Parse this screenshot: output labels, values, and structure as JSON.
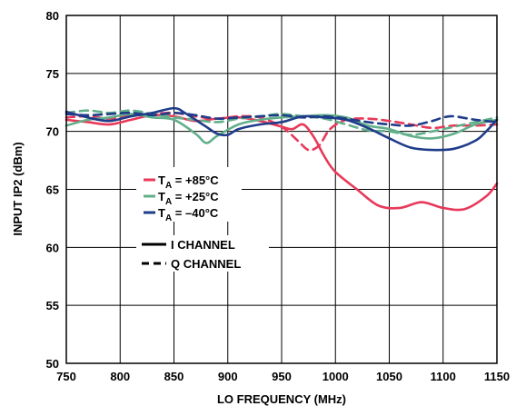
{
  "chart_data": {
    "type": "line",
    "title": "",
    "xlabel": "LO FREQUENCY (MHz)",
    "ylabel": "INPUT IP2 (dBm)",
    "xlim": [
      750,
      1150
    ],
    "ylim": [
      50,
      80
    ],
    "xticks": [
      750,
      800,
      850,
      900,
      950,
      1000,
      1050,
      1100,
      1150
    ],
    "yticks": [
      50,
      55,
      60,
      65,
      70,
      75,
      80
    ],
    "grid": true,
    "legend_placement": "center-left",
    "legend": {
      "temperatures": [
        {
          "label": "T",
          "sub": "A",
          "suffix": " = +85°C",
          "color": "#e8395a"
        },
        {
          "label": "T",
          "sub": "A",
          "suffix": " = +25°C",
          "color": "#62b08b"
        },
        {
          "label": "T",
          "sub": "A",
          "suffix": " = –40°C",
          "color": "#1f3c8a"
        }
      ],
      "channels": [
        {
          "label": "I CHANNEL",
          "style": "solid"
        },
        {
          "label": "Q CHANNEL",
          "style": "dashed"
        }
      ]
    },
    "series": [
      {
        "temp": "+85°C",
        "channel": "I",
        "color": "#e8395a",
        "dash": false,
        "x": [
          750,
          770,
          790,
          810,
          830,
          850,
          870,
          890,
          910,
          930,
          950,
          960,
          970,
          980,
          990,
          1000,
          1020,
          1040,
          1060,
          1080,
          1100,
          1120,
          1140,
          1150
        ],
        "y": [
          71.0,
          70.8,
          70.6,
          71.0,
          71.4,
          71.3,
          70.9,
          71.1,
          71.2,
          70.9,
          70.4,
          70.2,
          70.6,
          69.5,
          67.8,
          66.5,
          65.0,
          63.6,
          63.4,
          63.9,
          63.4,
          63.3,
          64.4,
          65.5
        ]
      },
      {
        "temp": "+85°C",
        "channel": "Q",
        "color": "#e8395a",
        "dash": true,
        "x": [
          750,
          770,
          790,
          810,
          830,
          850,
          870,
          890,
          910,
          930,
          950,
          965,
          975,
          985,
          995,
          1010,
          1030,
          1050,
          1070,
          1090,
          1110,
          1130,
          1150
        ],
        "y": [
          71.2,
          71.3,
          71.1,
          71.4,
          71.5,
          71.6,
          71.3,
          71.1,
          71.3,
          71.2,
          70.4,
          69.2,
          68.4,
          68.8,
          70.2,
          71.0,
          71.1,
          70.9,
          70.6,
          70.3,
          70.5,
          70.5,
          70.6
        ]
      },
      {
        "temp": "+25°C",
        "channel": "I",
        "color": "#62b08b",
        "dash": false,
        "x": [
          750,
          770,
          790,
          810,
          830,
          850,
          870,
          880,
          890,
          910,
          930,
          950,
          970,
          990,
          1010,
          1030,
          1050,
          1070,
          1090,
          1110,
          1130,
          1150
        ],
        "y": [
          70.5,
          71.0,
          71.2,
          71.5,
          71.2,
          71.0,
          69.8,
          69.0,
          69.6,
          70.6,
          71.0,
          71.2,
          71.3,
          71.4,
          71.2,
          70.5,
          70.2,
          69.6,
          69.4,
          69.8,
          70.6,
          71.0
        ]
      },
      {
        "temp": "+25°C",
        "channel": "Q",
        "color": "#62b08b",
        "dash": true,
        "x": [
          750,
          770,
          790,
          810,
          830,
          850,
          870,
          890,
          910,
          930,
          950,
          970,
          990,
          1010,
          1030,
          1050,
          1070,
          1090,
          1110,
          1130,
          1150
        ],
        "y": [
          71.6,
          71.8,
          71.6,
          71.8,
          71.5,
          71.2,
          71.0,
          70.8,
          71.1,
          71.3,
          71.5,
          71.3,
          71.1,
          70.6,
          70.1,
          70.0,
          69.7,
          70.0,
          70.4,
          70.8,
          71.2
        ]
      },
      {
        "temp": "–40°C",
        "channel": "I",
        "color": "#1f3c8a",
        "dash": false,
        "x": [
          750,
          770,
          790,
          810,
          830,
          850,
          860,
          870,
          880,
          890,
          900,
          910,
          930,
          950,
          970,
          990,
          1010,
          1030,
          1050,
          1070,
          1090,
          1110,
          1130,
          1140,
          1150
        ],
        "y": [
          71.7,
          71.2,
          70.9,
          71.3,
          71.6,
          72.0,
          71.6,
          71.0,
          70.4,
          69.8,
          69.7,
          70.2,
          70.6,
          70.8,
          71.3,
          71.2,
          71.0,
          70.3,
          69.4,
          68.6,
          68.4,
          68.5,
          69.2,
          70.0,
          71.0
        ]
      },
      {
        "temp": "–40°C",
        "channel": "Q",
        "color": "#1f3c8a",
        "dash": true,
        "x": [
          750,
          770,
          790,
          810,
          830,
          850,
          870,
          890,
          910,
          930,
          950,
          970,
          990,
          1010,
          1030,
          1050,
          1070,
          1090,
          1100,
          1110,
          1130,
          1150
        ],
        "y": [
          71.5,
          71.4,
          71.5,
          71.6,
          71.4,
          71.6,
          71.4,
          71.1,
          71.2,
          71.3,
          71.4,
          71.2,
          71.3,
          71.1,
          70.8,
          70.6,
          70.5,
          70.9,
          71.2,
          71.3,
          71.0,
          70.8
        ]
      }
    ]
  }
}
